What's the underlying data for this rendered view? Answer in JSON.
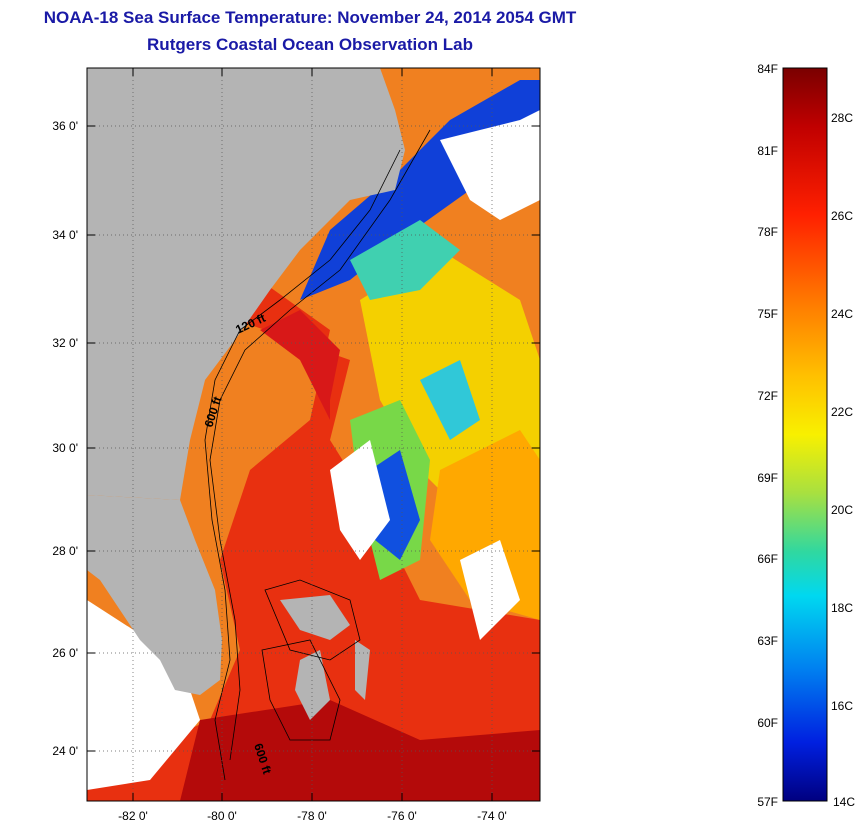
{
  "header": {
    "title": "NOAA-18 Sea Surface Temperature:  November 24, 2014 2054 GMT",
    "subtitle": "Rutgers Coastal Ocean Observation Lab"
  },
  "map": {
    "lat_ticks": [
      "36 0'",
      "34 0'",
      "32 0'",
      "30 0'",
      "28 0'",
      "26 0'",
      "24 0'"
    ],
    "lon_ticks": [
      "-82 0'",
      "-80 0'",
      "-78 0'",
      "-76 0'",
      "-74 0'"
    ],
    "depth_labels": [
      "120 ft",
      "600 ft",
      "600 ft"
    ],
    "colors": {
      "land": "#b4b4b4",
      "cloud": "#ffffff",
      "contour": "#000000"
    }
  },
  "colorbar": {
    "fahrenheit": [
      "84F",
      "81F",
      "78F",
      "75F",
      "72F",
      "69F",
      "66F",
      "63F",
      "60F",
      "57F"
    ],
    "celsius": [
      "28C",
      "26C",
      "24C",
      "22C",
      "20C",
      "18C",
      "16C",
      "14C"
    ]
  }
}
